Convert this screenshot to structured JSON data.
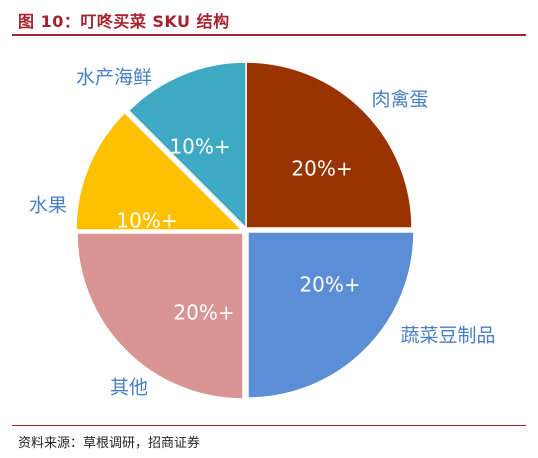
{
  "header": {
    "title": "图 10：叮咚买菜 SKU 结构"
  },
  "source": "资料来源：草根调研，招商证券",
  "chart_data": {
    "type": "pie",
    "slices": [
      {
        "label": "肉禽蛋",
        "value_label": "20%+",
        "value": 20,
        "color": "#993300"
      },
      {
        "label": "蔬菜豆制品",
        "value_label": "20%+",
        "value": 20,
        "color": "#5b8ed6"
      },
      {
        "label": "其他",
        "value_label": "20%+",
        "value": 20,
        "color": "#d99594"
      },
      {
        "label": "水果",
        "value_label": "10%+",
        "value": 10,
        "color": "#ffc000"
      },
      {
        "label": "水产海鲜",
        "value_label": "10%+",
        "value": 10,
        "color": "#3fa9c4"
      }
    ],
    "slice_label_color": "#ffffff",
    "category_label_color": "#4a7fc1"
  }
}
